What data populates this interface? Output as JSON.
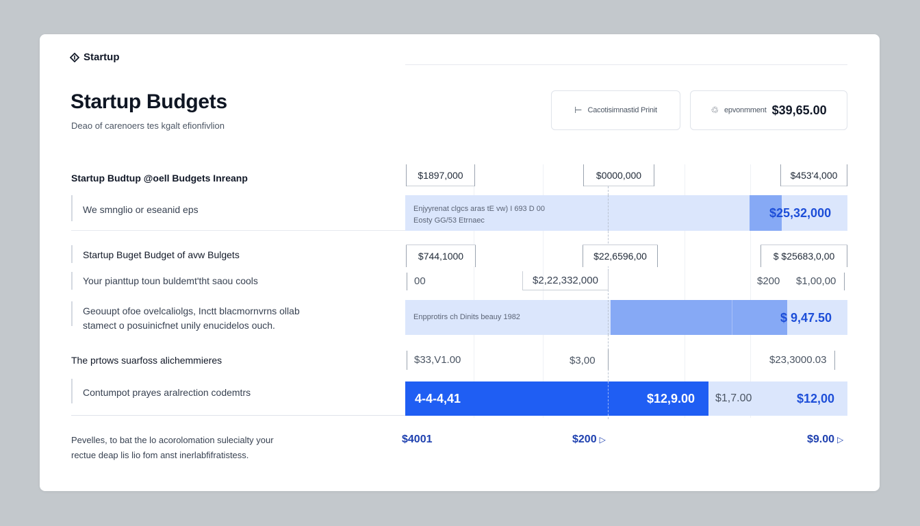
{
  "brand": {
    "name": "Startup"
  },
  "header": {
    "title": "Startup Budgets",
    "subtitle": "Deao of carenoers tes kgalt efionfivlion"
  },
  "stats": [
    {
      "label": "Cacotisimnastid Prinit",
      "value": "",
      "icon": "bar-start-icon"
    },
    {
      "label": "epvonmment",
      "value": "$39,65.00",
      "icon": "recycle-icon"
    }
  ],
  "sections": [
    {
      "heading": "Startup Budtup @oell Budgets Inreanp",
      "ticks": [
        "$1897,000",
        "$0000,000",
        "$453'4,000"
      ]
    },
    {
      "row": "We smnglio or eseanid eps",
      "note_1": "Enjyyrenat clgcs aras tE vw) I 693 D 00",
      "note_2": "Eosty GG/53 Etrnaec",
      "value": "$25,32,000"
    },
    {
      "heading": "Startup Buget Budget of avw Bulgets",
      "ticks": [
        "$744,1000",
        "$22,6596,00",
        "$ $25683,0,00"
      ]
    },
    {
      "row": "Your pianttup toun buldemt'tht saou cools",
      "values": [
        "00",
        "$2,22,332,000",
        "$200",
        "$1,00,00"
      ]
    },
    {
      "row_1": "Geouupt ofoe ovelcaliolgs, Inctt blacmornvrns ollab",
      "row_2": "stamect o posuinicfnet unily enucidelos ouch.",
      "note": "Enpprotirs ch Dinits beauy 1982",
      "value": "$ 9,47.50"
    },
    {
      "heading": "The prtows suarfoss alichemmieres",
      "values": [
        "$33,V1.00",
        "$3,00",
        "$23,3000.03"
      ]
    },
    {
      "row": "Contumpot prayes aralrection codemtrs",
      "values": [
        "4-4-4,41",
        "$12,9.00",
        "$1,7.00",
        "$12,00"
      ]
    }
  ],
  "footer": {
    "line_1": "Pevelles, to bat the lo acorolomation sulecialty your",
    "line_2": "rectue deap lis lio fom anst inerlabfifratistess.",
    "values": [
      "$4001",
      "$200",
      "$9.00"
    ]
  },
  "colors": {
    "accent": "#1f5ef3",
    "band_light": "#dbe6fc",
    "band_mid": "#86a9f5",
    "value_blue": "#1d4ed8",
    "background": "#c3c8cc"
  }
}
